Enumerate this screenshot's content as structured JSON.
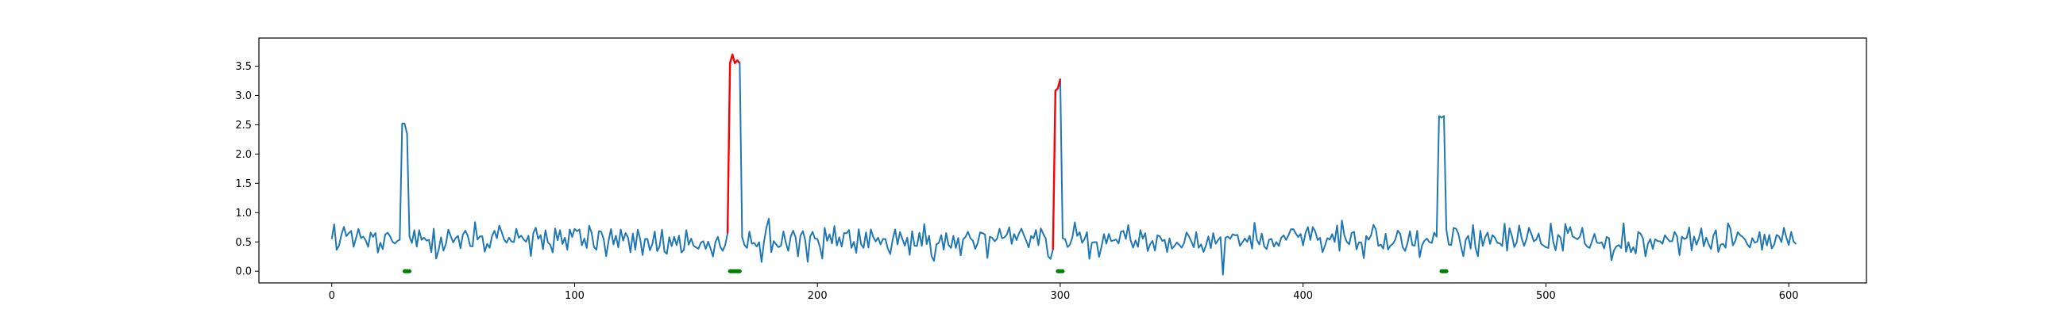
{
  "chart_data": {
    "type": "line",
    "title": "",
    "xlabel": "",
    "ylabel": "",
    "xlim": [
      -30,
      632
    ],
    "ylim": [
      -0.2,
      3.98
    ],
    "xticks": [
      0,
      100,
      200,
      300,
      400,
      500,
      600
    ],
    "xtick_labels": [
      "0",
      "100",
      "200",
      "300",
      "400",
      "500",
      "600"
    ],
    "yticks": [
      0.0,
      0.5,
      1.0,
      1.5,
      2.0,
      2.5,
      3.0,
      3.5
    ],
    "ytick_labels": [
      "0.0",
      "0.5",
      "1.0",
      "1.5",
      "2.0",
      "2.5",
      "3.0",
      "3.5"
    ],
    "grid": false,
    "legend": "none",
    "n_points": 604,
    "baseline_seed": 20240613,
    "baseline": {
      "mean": 0.52,
      "amplitude": 0.26
    },
    "spikes": [
      {
        "x_start": 29,
        "x_end": 31,
        "values": [
          2.52,
          2.52,
          2.35
        ],
        "highlight": false
      },
      {
        "x_start": 164,
        "x_end": 168,
        "values": [
          3.55,
          3.7,
          3.55,
          3.6,
          3.55
        ],
        "highlight": true
      },
      {
        "x_start": 298,
        "x_end": 300,
        "values": [
          3.08,
          3.12,
          3.28
        ],
        "highlight": true
      },
      {
        "x_start": 456,
        "x_end": 458,
        "values": [
          2.65,
          2.62,
          2.65
        ],
        "highlight": false
      }
    ],
    "dips": [
      {
        "x": 367,
        "value": -0.06
      }
    ],
    "markers": [
      {
        "x_start": 30,
        "x_end": 32,
        "y": 0.0
      },
      {
        "x_start": 164,
        "x_end": 168,
        "y": 0.0
      },
      {
        "x_start": 299,
        "x_end": 301,
        "y": 0.0
      },
      {
        "x_start": 457,
        "x_end": 459,
        "y": 0.0
      }
    ],
    "series": [
      {
        "role": "signal",
        "color": "#1f77b4"
      },
      {
        "role": "highlighted segments",
        "color": "#ff0000"
      },
      {
        "role": "markers",
        "color": "#008000"
      }
    ]
  }
}
